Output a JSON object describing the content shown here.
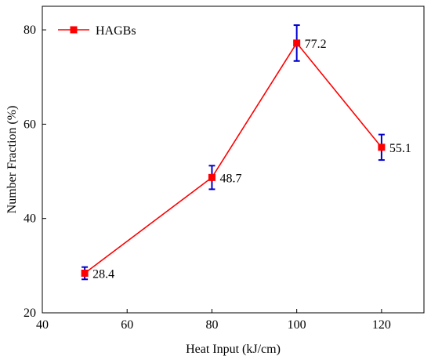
{
  "chart_data": {
    "type": "line",
    "xlabel": "Heat Input (kJ/cm)",
    "ylabel": "Number Fraction (%)",
    "xlim": [
      40,
      130
    ],
    "ylim": [
      20,
      85
    ],
    "x_ticks": [
      40,
      60,
      80,
      100,
      120
    ],
    "y_ticks": [
      20,
      40,
      60,
      80
    ],
    "grid": false,
    "legend_position": "top-left",
    "series": [
      {
        "name": "HAGBs",
        "color": "#ff0000",
        "error_color": "#0000cc",
        "marker": "square",
        "x": [
          50,
          80,
          100,
          120
        ],
        "y": [
          28.4,
          48.7,
          77.2,
          55.1
        ],
        "error": [
          1.3,
          2.5,
          3.8,
          2.7
        ],
        "labels": [
          "28.4",
          "48.7",
          "77.2",
          "55.1"
        ]
      }
    ]
  }
}
